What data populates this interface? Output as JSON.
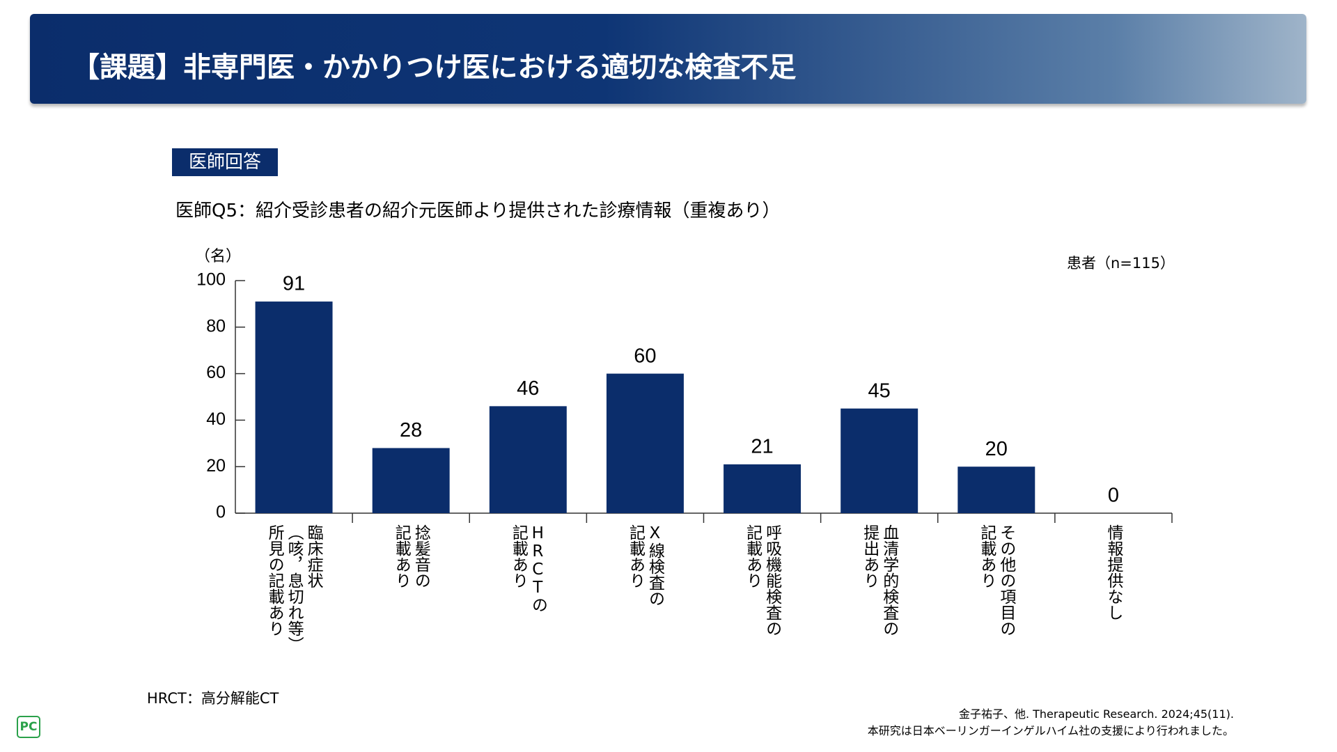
{
  "header": {
    "title": "【課題】非専門医・かかりつけ医における適切な検査不足"
  },
  "badge": "医師回答",
  "footnote": "HRCT：高分解能CT",
  "citation": [
    "金子祐子、他. Therapeutic Research. 2024;45(11).",
    "本研究は日本ベーリンガーインゲルハイム社の支援により行われました。"
  ],
  "logo": "PC",
  "chart_data": {
    "type": "bar",
    "title": "医師Q5：紹介受診患者の紹介元医師より提供された診療情報（重複あり）",
    "y_axis_label": "（名）",
    "annotation": "患者（n=115）",
    "categories": [
      "臨床症状\n（咳，息切れ等）\n所見の記載あり",
      "捻髪音の\n記載あり",
      "HRCTの\n記載あり",
      "X線検査の\n記載あり",
      "呼吸機能検査の\n記載あり",
      "血清学的検査の\n提出あり",
      "その他の項目の\n記載あり",
      "情報提供なし"
    ],
    "values": [
      91,
      28,
      46,
      60,
      21,
      45,
      20,
      0
    ],
    "color": "#0b2d6b",
    "ylim": [
      0,
      100
    ],
    "yticks": [
      0,
      20,
      40,
      60,
      80,
      100
    ],
    "grid": false
  }
}
